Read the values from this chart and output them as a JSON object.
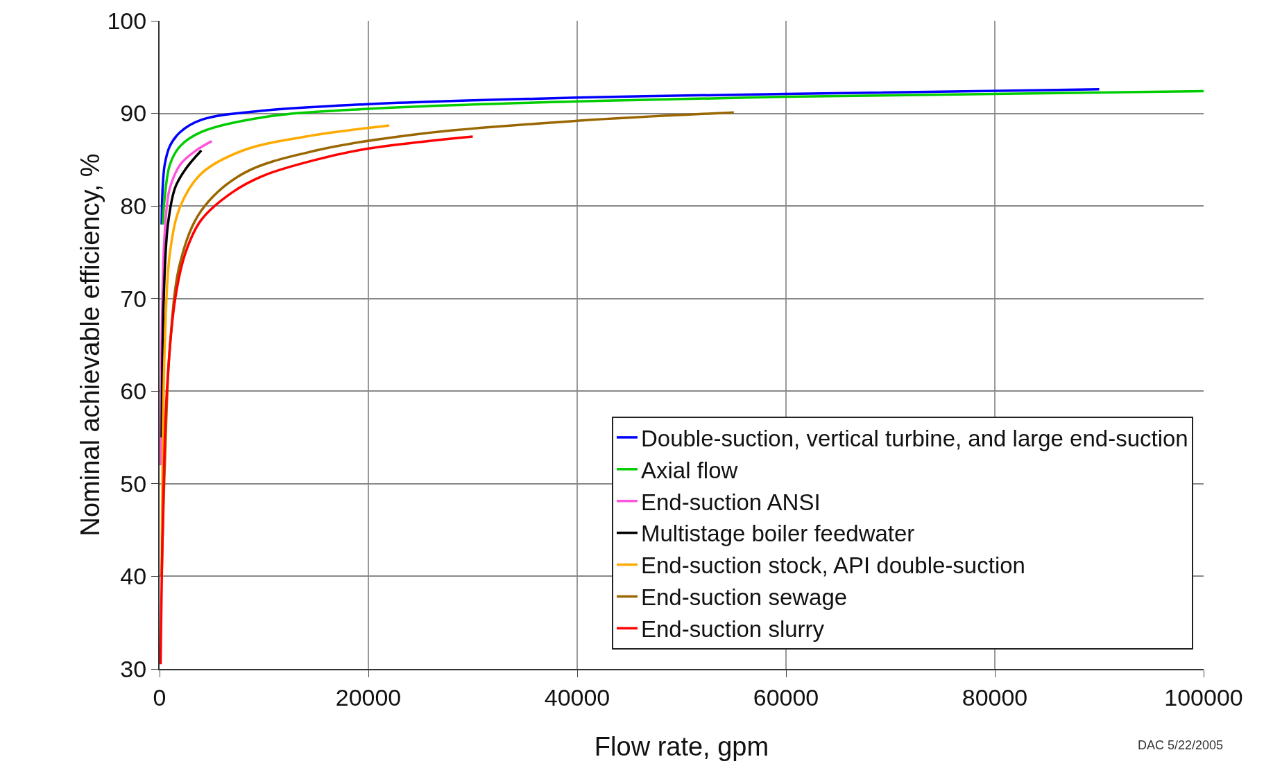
{
  "chart_data": {
    "type": "line",
    "xlabel": "Flow rate, gpm",
    "ylabel": "Nominal achievable efficiency, %",
    "xlim": [
      0,
      100000
    ],
    "xticks": [
      0,
      20000,
      40000,
      60000,
      80000,
      100000
    ],
    "ylim": [
      30,
      100
    ],
    "yticks": [
      30,
      40,
      50,
      60,
      70,
      80,
      90,
      100
    ],
    "grid": true,
    "legend": "bottom right",
    "marker": "none",
    "line_style": "solid",
    "annotations": [
      "DAC 5/22/2005"
    ],
    "series": [
      {
        "name": "Double-suction, vertical turbine, and large end-suction",
        "color": "#0000ff",
        "x": [
          200,
          300,
          500,
          1000,
          2000,
          4000,
          10000,
          20000,
          40000,
          60000,
          90000
        ],
        "values": [
          78,
          82,
          84.5,
          86.5,
          88,
          89.3,
          90.3,
          91,
          91.7,
          92.1,
          92.6
        ]
      },
      {
        "name": "Axial flow",
        "color": "#00cc00",
        "x": [
          300,
          500,
          1000,
          2000,
          4000,
          10000,
          20000,
          40000,
          60000,
          80000,
          100000
        ],
        "values": [
          78,
          81,
          84.5,
          86.5,
          88,
          89.6,
          90.5,
          91.3,
          91.8,
          92.1,
          92.4
        ]
      },
      {
        "name": "End-suction ANSI",
        "color": "#ff55dd",
        "x": [
          100,
          200,
          400,
          700,
          1000,
          2000,
          3500,
          5000
        ],
        "values": [
          52,
          65,
          75,
          80,
          82,
          84.5,
          86,
          87
        ]
      },
      {
        "name": "Multistage boiler feedwater",
        "color": "#000000",
        "x": [
          200,
          400,
          800,
          1500,
          2500,
          4000
        ],
        "values": [
          55,
          70,
          78,
          82,
          84,
          86
        ]
      },
      {
        "name": "End-suction stock, API double-suction",
        "color": "#ffaa00",
        "x": [
          200,
          500,
          1000,
          2000,
          4000,
          8000,
          14000,
          22000
        ],
        "values": [
          40,
          65,
          75,
          80,
          83.5,
          86,
          87.5,
          88.7
        ]
      },
      {
        "name": "End-suction sewage",
        "color": "#996600",
        "x": [
          200,
          500,
          1000,
          2000,
          4000,
          8000,
          15000,
          25000,
          40000,
          55000
        ],
        "values": [
          40,
          52,
          65,
          74,
          79.5,
          83.5,
          86,
          87.8,
          89.2,
          90.1
        ]
      },
      {
        "name": "End-suction slurry",
        "color": "#ff0000",
        "x": [
          100,
          300,
          700,
          1500,
          2500,
          4000,
          7000,
          10000,
          15000,
          20000,
          30000
        ],
        "values": [
          30.5,
          45,
          60,
          70,
          75,
          78.5,
          81.5,
          83.3,
          85,
          86.2,
          87.5
        ]
      }
    ]
  }
}
